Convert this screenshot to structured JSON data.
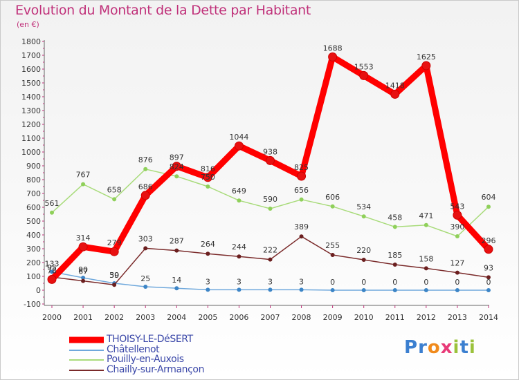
{
  "header": {
    "title": "Evolution du Montant de la Dette par Habitant",
    "unit": "(en €)"
  },
  "logo": {
    "text": "Proxiti",
    "letters": [
      {
        "ch": "P",
        "color": "#3b7fd0"
      },
      {
        "ch": "r",
        "color": "#3b7fd0"
      },
      {
        "ch": "o",
        "color": "#f08a1c"
      },
      {
        "ch": "x",
        "color": "#e83a78"
      },
      {
        "ch": "i",
        "color": "#9bc23b"
      },
      {
        "ch": "t",
        "color": "#3b7fd0"
      },
      {
        "ch": "i",
        "color": "#9bc23b"
      }
    ]
  },
  "chart_data": {
    "type": "line",
    "title": "Evolution du Montant de la Dette par Habitant",
    "ylabel": "(en €)",
    "xlabel": "",
    "x": [
      "2000",
      "2001",
      "2002",
      "2003",
      "2004",
      "2005",
      "2006",
      "2007",
      "2008",
      "2009",
      "2010",
      "2011",
      "2012",
      "2013",
      "2014"
    ],
    "ylim": [
      -100,
      1800
    ],
    "yticks": [
      -100,
      0,
      100,
      200,
      300,
      400,
      500,
      600,
      700,
      800,
      900,
      1000,
      1100,
      1200,
      1300,
      1400,
      1500,
      1600,
      1700,
      1800
    ],
    "grid": false,
    "legend_position": "bottom-left",
    "series": [
      {
        "name": "THOISY-LE-DéSERT",
        "color": "#ff0000",
        "marker": "#e81010",
        "values": [
          78,
          314,
          279,
          686,
          897,
          816,
          1044,
          938,
          825,
          1688,
          1553,
          1418,
          1625,
          543,
          296
        ]
      },
      {
        "name": "Châtellenot",
        "color": "#6fa8dc",
        "marker": "#3d85c6",
        "values": [
          133,
          90,
          50,
          25,
          14,
          3,
          3,
          3,
          3,
          0,
          0,
          0,
          0,
          0,
          0
        ]
      },
      {
        "name": "Pouilly-en-Auxois",
        "color": "#a8db7a",
        "marker": "#8fd05a",
        "values": [
          561,
          767,
          658,
          876,
          824,
          750,
          649,
          590,
          656,
          606,
          534,
          458,
          471,
          390,
          604
        ]
      },
      {
        "name": "Chailly-sur-Armançon",
        "color": "#7a2a2a",
        "marker": "#6b1f1f",
        "values": [
          95,
          67,
          39,
          303,
          287,
          264,
          244,
          222,
          389,
          255,
          220,
          185,
          158,
          127,
          93
        ]
      }
    ],
    "data_labels": [
      [
        "78",
        "314",
        "279",
        "686",
        "897",
        "816",
        "1044",
        "938",
        "825",
        "1688",
        "1553",
        "1418",
        "1625",
        "543",
        "296"
      ],
      [
        "133",
        "90",
        "50",
        "25",
        "14",
        "3",
        "3",
        "3",
        "3",
        "0",
        "0",
        "0",
        "0",
        "0",
        "0"
      ],
      [
        "561",
        "767",
        "658",
        "876",
        "824",
        "750",
        "649",
        "590",
        "656",
        "606",
        "534",
        "458",
        "471",
        "390",
        "604"
      ],
      [
        "95",
        "67",
        "39",
        "303",
        "287",
        "264",
        "244",
        "222",
        "389",
        "255",
        "220",
        "185",
        "158",
        "127",
        "93"
      ]
    ]
  }
}
